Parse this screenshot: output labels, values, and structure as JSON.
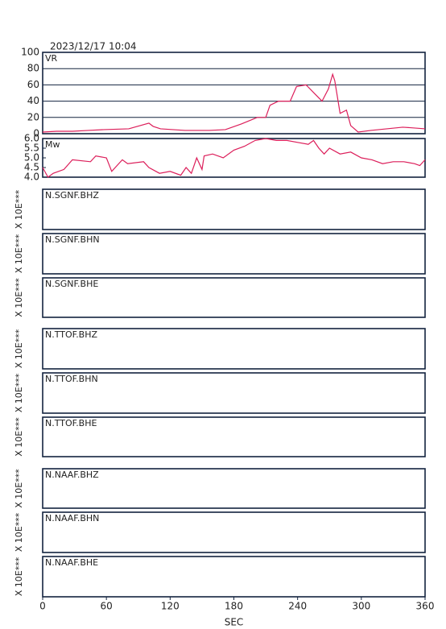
{
  "header": {
    "title": "2023/12/17 10:04"
  },
  "chart_data": [
    {
      "type": "line",
      "title": "VR",
      "color": "#dc1e5a",
      "grid": true,
      "xlim": [
        0,
        360
      ],
      "ylim": [
        0,
        100
      ],
      "yticks": [
        0,
        20,
        40,
        60,
        80,
        100
      ],
      "x": [
        0,
        13,
        28,
        43,
        58,
        81,
        100,
        104,
        111,
        134,
        157,
        172,
        187,
        202,
        210,
        214,
        222,
        233,
        239,
        248,
        257,
        263,
        269,
        273,
        275,
        280,
        286,
        290,
        297,
        309,
        324,
        339,
        350,
        360
      ],
      "values": [
        2,
        3,
        3,
        4,
        5,
        6,
        13,
        9,
        6,
        4,
        4,
        5,
        12,
        20,
        20,
        35,
        40,
        40,
        58,
        60,
        48,
        40,
        55,
        73,
        65,
        25,
        29,
        10,
        2,
        4,
        6,
        8,
        7,
        6
      ]
    },
    {
      "type": "line",
      "title": "Mw",
      "color": "#dc1e5a",
      "grid": false,
      "xlim": [
        0,
        360
      ],
      "ylim": [
        4,
        6
      ],
      "yticks": [
        {
          "value": 4,
          "label": "4.0"
        },
        4.5,
        {
          "value": 5,
          "label": "5.0"
        },
        5.5,
        {
          "value": 6,
          "label": "6.0"
        }
      ],
      "x": [
        0,
        5,
        10,
        20,
        28,
        45,
        50,
        60,
        65,
        75,
        80,
        95,
        100,
        110,
        120,
        130,
        135,
        140,
        145,
        150,
        152,
        160,
        170,
        180,
        190,
        200,
        210,
        220,
        230,
        240,
        250,
        255,
        260,
        265,
        270,
        280,
        290,
        300,
        310,
        320,
        330,
        340,
        350,
        355,
        360
      ],
      "values": [
        4.5,
        4.0,
        4.2,
        4.4,
        4.9,
        4.8,
        5.1,
        5.0,
        4.3,
        4.9,
        4.7,
        4.8,
        4.5,
        4.2,
        4.3,
        4.1,
        4.5,
        4.2,
        5.0,
        4.4,
        5.1,
        5.2,
        5.0,
        5.4,
        5.6,
        5.9,
        6.0,
        5.9,
        5.9,
        5.8,
        5.7,
        5.9,
        5.5,
        5.2,
        5.5,
        5.2,
        5.3,
        5.0,
        4.9,
        4.7,
        4.8,
        4.8,
        4.7,
        4.6,
        4.9
      ]
    },
    {
      "type": "line",
      "title": "N.SGNF.BHZ",
      "ylabel": "X 10E***"
    },
    {
      "type": "line",
      "title": "N.SGNF.BHN",
      "ylabel": "X 10E***"
    },
    {
      "type": "line",
      "title": "N.SGNF.BHE",
      "ylabel": "X 10E***"
    },
    {
      "type": "line",
      "title": "N.TTOF.BHZ",
      "ylabel": "X 10E***"
    },
    {
      "type": "line",
      "title": "N.TTOF.BHN",
      "ylabel": "X 10E***"
    },
    {
      "type": "line",
      "title": "N.TTOF.BHE",
      "ylabel": "X 10E***"
    },
    {
      "type": "line",
      "title": "N.NAAF.BHZ",
      "ylabel": "X 10E***"
    },
    {
      "type": "line",
      "title": "N.NAAF.BHN",
      "ylabel": "X 10E***"
    },
    {
      "type": "line",
      "title": "N.NAAF.BHE",
      "ylabel": "X 10E***",
      "xlabel": "SEC",
      "xlim": [
        0,
        360
      ],
      "xticks": [
        0,
        60,
        120,
        180,
        240,
        300,
        360
      ]
    }
  ]
}
